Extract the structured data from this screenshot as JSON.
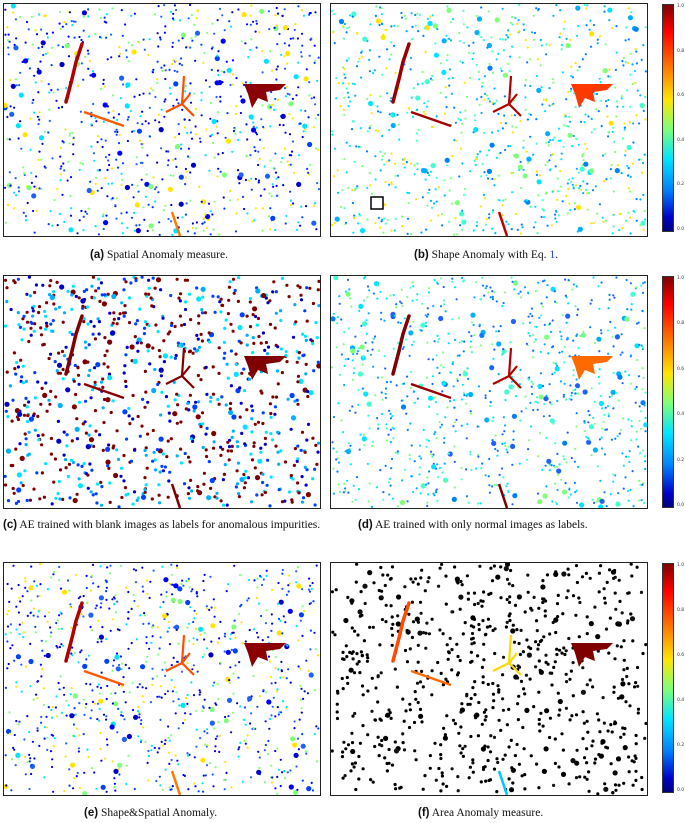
{
  "panels": [
    {
      "id": "a",
      "letter": "(a)",
      "caption": "Spatial Anomaly measure.",
      "ref": ""
    },
    {
      "id": "b",
      "letter": "(b)",
      "caption": "Shape Anomaly with Eq. ",
      "ref": "1",
      "suffix": "."
    },
    {
      "id": "c",
      "letter": "(c)",
      "caption": "AE trained with blank images as labels for anomalous impurities.",
      "ref": ""
    },
    {
      "id": "d",
      "letter": "(d)",
      "caption": "AE trained with only normal images as labels.",
      "ref": ""
    },
    {
      "id": "e",
      "letter": "(e)",
      "caption": "Shape&Spatial Anomaly.",
      "ref": ""
    },
    {
      "id": "f",
      "letter": "(f)",
      "caption": "Area Anomaly measure.",
      "ref": ""
    }
  ],
  "colorbar": {
    "ticks": [
      "1.0",
      "0.8",
      "0.6",
      "0.4",
      "0.2",
      "0.0"
    ],
    "colors": [
      "#7f0000",
      "#ff0000",
      "#ff7a00",
      "#ffe500",
      "#7fff7a",
      "#00e5ff",
      "#0080ff",
      "#0000c8",
      "#00007f"
    ]
  }
}
